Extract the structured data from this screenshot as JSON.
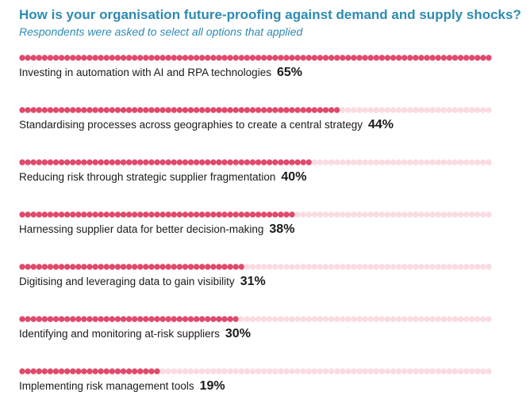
{
  "title": "How is your organisation future-proofing against demand and supply shocks?",
  "subtitle": "Respondents were asked to select all options that applied",
  "colors": {
    "title": "#2e8bb2",
    "dot_filled": "#e04a6c",
    "dot_empty": "#fbdbe2",
    "label": "#1a1a1a"
  },
  "chart_data": {
    "type": "bar",
    "orientation": "horizontal",
    "style": "dot-bar",
    "categories": [
      "Investing in automation with AI and RPA technologies",
      "Standardising processes across geographies to create a central strategy",
      "Reducing risk through strategic supplier fragmentation",
      "Harnessing supplier data for better decision-making",
      "Digitising and leveraging data to gain visibility",
      "Identifying and monitoring at-risk suppliers",
      "Implementing risk management tools"
    ],
    "values": [
      65,
      44,
      40,
      38,
      31,
      30,
      19
    ],
    "value_labels": [
      "65%",
      "44%",
      "40%",
      "38%",
      "31%",
      "30%",
      "19%"
    ],
    "scale_max": 65,
    "grid": false,
    "legend": "none"
  }
}
